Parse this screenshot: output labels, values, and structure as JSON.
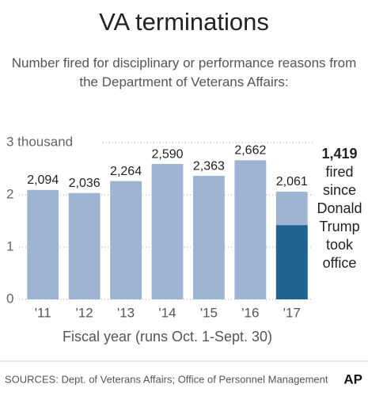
{
  "chart_data": {
    "type": "bar",
    "title": "VA terminations",
    "subtitle": [
      "Number fired for disciplinary or performance reasons from",
      "the Department of Veterans Affairs:"
    ],
    "categories": [
      "'11",
      "'12",
      "'13",
      "'14",
      "'15",
      "'16",
      "'17"
    ],
    "series": [
      {
        "color": "#9db5d3",
        "values": [
          2.094,
          2.036,
          2.264,
          2.59,
          2.363,
          2.662,
          2.061
        ],
        "value_labels": [
          "2,094",
          "2,036",
          "2,264",
          "2,590",
          "2,363",
          "2,662",
          "2,061"
        ]
      },
      {
        "color": "#1f6391",
        "values": [
          null,
          null,
          null,
          null,
          null,
          null,
          1.419
        ],
        "value_labels": [
          null,
          null,
          null,
          null,
          null,
          null,
          "1,419"
        ]
      }
    ],
    "annotation": "fired since Donald Trump took office",
    "xlabel": "Fiscal year (runs Oct. 1-Sept. 30)",
    "source": "SOURCES:  Dept. of Veterans Affairs; Office of Personnel Management",
    "credit": "AP",
    "ylim": [
      0,
      3
    ],
    "yticks": [
      0,
      1,
      2,
      {
        "value": 3,
        "label": "3 thousand"
      }
    ],
    "grid": true
  }
}
